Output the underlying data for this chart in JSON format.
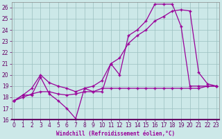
{
  "bg_color": "#cce8e8",
  "grid_color": "#9bbfbf",
  "line_color": "#990099",
  "tick_color": "#660066",
  "xlabel": "Windchill (Refroidissement éolien,°C)",
  "xlim": [
    -0.3,
    23.3
  ],
  "ylim": [
    16,
    26.5
  ],
  "xticks": [
    0,
    1,
    2,
    3,
    4,
    5,
    6,
    7,
    8,
    9,
    10,
    11,
    12,
    13,
    14,
    15,
    16,
    17,
    18,
    19,
    20,
    21,
    22,
    23
  ],
  "yticks": [
    16,
    17,
    18,
    19,
    20,
    21,
    22,
    23,
    24,
    25,
    26
  ],
  "line1_x": [
    0,
    1,
    2,
    3,
    4,
    5,
    6,
    7,
    8,
    9,
    10,
    11,
    12,
    13,
    14,
    15,
    16,
    17,
    18,
    19,
    20,
    21,
    22,
    23
  ],
  "line1_y": [
    17.7,
    18.2,
    18.2,
    19.8,
    18.3,
    17.7,
    17.0,
    16.1,
    18.8,
    18.5,
    18.5,
    21.0,
    20.0,
    23.5,
    24.0,
    24.8,
    26.3,
    26.3,
    26.3,
    24.3,
    19.0,
    19.0,
    19.0,
    19.0
  ],
  "line2_x": [
    0,
    1,
    2,
    3,
    4,
    5,
    6,
    7,
    8,
    9,
    10,
    11,
    12,
    13,
    14,
    15,
    16,
    17,
    18,
    19,
    20,
    21,
    22,
    23
  ],
  "line2_y": [
    17.7,
    18.2,
    18.8,
    20.0,
    19.3,
    19.0,
    18.8,
    18.5,
    18.8,
    19.0,
    19.5,
    21.0,
    21.5,
    22.8,
    23.5,
    24.0,
    24.8,
    25.2,
    25.7,
    25.8,
    25.7,
    20.2,
    19.2,
    19.0
  ],
  "line3_x": [
    0,
    1,
    2,
    3,
    4,
    5,
    6,
    7,
    8,
    9,
    10,
    11,
    12,
    13,
    14,
    15,
    16,
    17,
    18,
    19,
    20,
    21,
    22,
    23
  ],
  "line3_y": [
    17.7,
    18.0,
    18.3,
    18.5,
    18.5,
    18.3,
    18.2,
    18.3,
    18.5,
    18.5,
    18.8,
    18.8,
    18.8,
    18.8,
    18.8,
    18.8,
    18.8,
    18.8,
    18.8,
    18.8,
    18.8,
    18.8,
    19.0,
    19.0
  ],
  "xlabel_fontsize": 5.5,
  "tick_fontsize": 5.5
}
